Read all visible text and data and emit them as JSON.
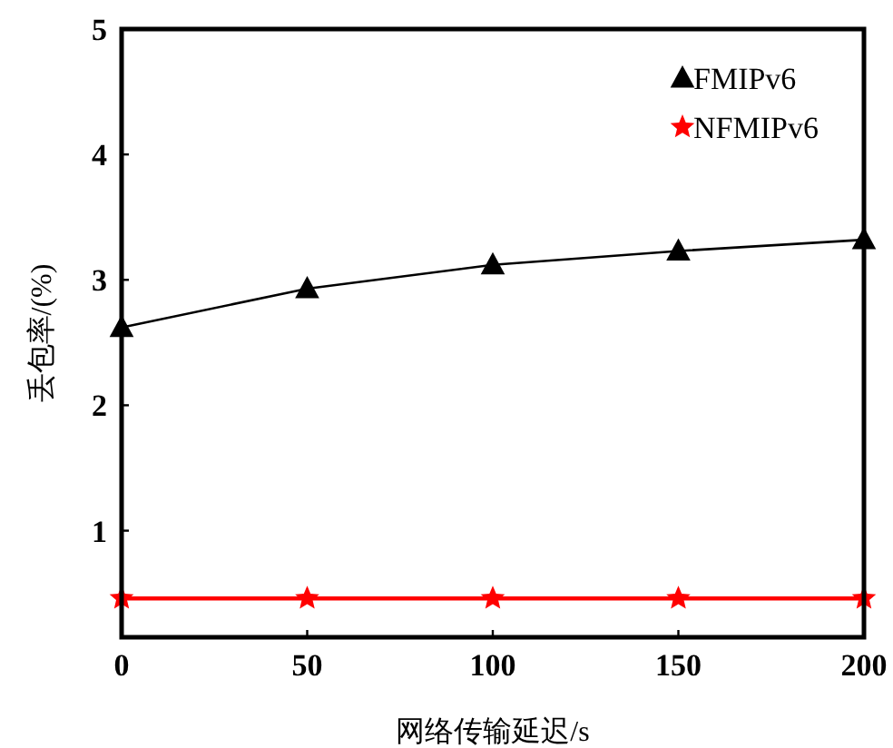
{
  "chart_data": {
    "type": "line",
    "xlabel": "网络传输延迟/s",
    "ylabel": "丢包率/(%)",
    "x": [
      0,
      50,
      100,
      150,
      200
    ],
    "series": [
      {
        "name": "FMIPv6",
        "color": "#000000",
        "marker": "triangle",
        "values": [
          2.62,
          2.93,
          3.12,
          3.23,
          3.32
        ]
      },
      {
        "name": "NFMIPv6",
        "color": "#ff0000",
        "marker": "star",
        "values": [
          0.46,
          0.46,
          0.46,
          0.46,
          0.46
        ]
      }
    ],
    "xlim": [
      0,
      200
    ],
    "xticks": [
      0,
      50,
      100,
      150,
      200
    ],
    "ylim": [
      0.15,
      5
    ],
    "yticks": [
      1,
      2,
      3,
      4,
      5
    ],
    "legend": "top right",
    "grid": false
  }
}
